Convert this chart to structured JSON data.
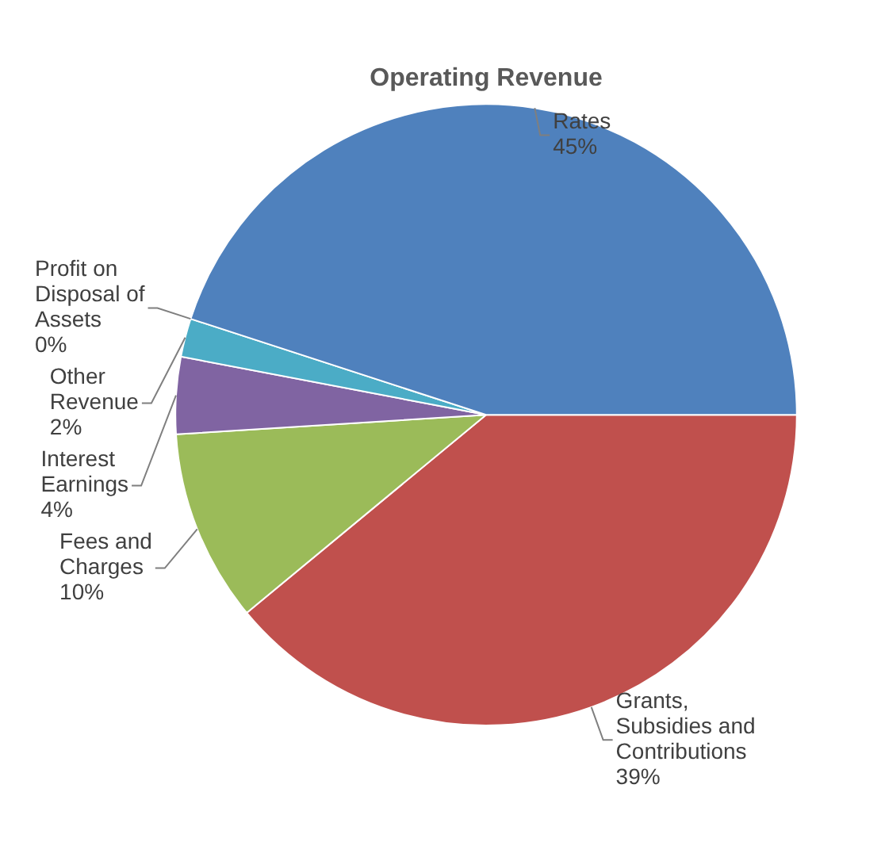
{
  "chart_data": {
    "type": "pie",
    "title": "Operating Revenue",
    "categories": [
      "Grants, Subsidies and Contributions",
      "Fees and Charges",
      "Interest Earnings",
      "Other Revenue",
      "Profit on Disposal of Assets",
      "Rates"
    ],
    "values": [
      39,
      10,
      4,
      2,
      0,
      45
    ],
    "value_labels": [
      "39%",
      "10%",
      "4%",
      "2%",
      "0%",
      "45%"
    ],
    "colors": [
      "#c0504d",
      "#9bbb59",
      "#8064a2",
      "#4bacc6",
      "#f79646",
      "#4f81bd"
    ],
    "legend": false
  }
}
